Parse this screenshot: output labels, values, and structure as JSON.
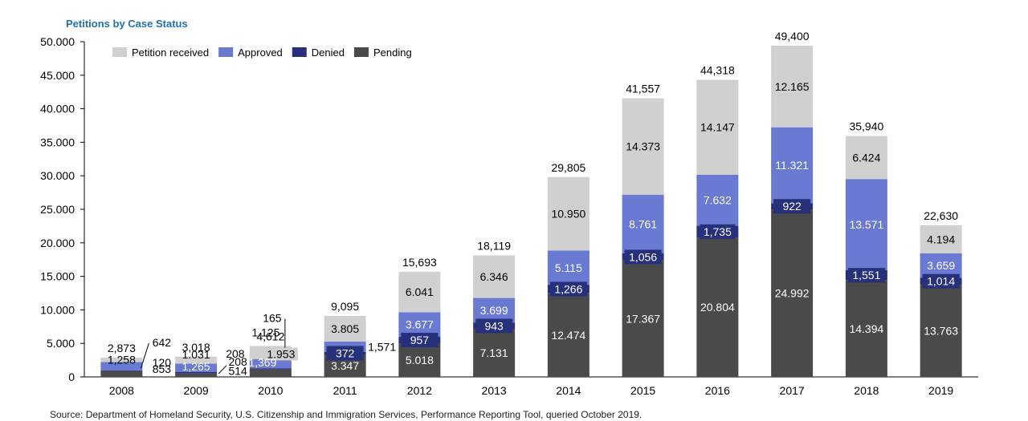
{
  "chart_data": {
    "type": "bar",
    "stacked": true,
    "title": "Petitions by Case Status",
    "source": "Source: Department of Homeland Security, U.S. Citizenship and Immigration Services, Performance Reporting Tool, queried October 2019.",
    "categories": [
      "2008",
      "2009",
      "2010",
      "2011",
      "2012",
      "2013",
      "2014",
      "2015",
      "2016",
      "2017",
      "2018",
      "2019"
    ],
    "ylim": [
      0,
      50000
    ],
    "yticks": [
      "0",
      "5.000",
      "10.000",
      "15.000",
      "20.000",
      "25.000",
      "30.000",
      "35.000",
      "40.000",
      "45.000",
      "50.000"
    ],
    "legend_position": "top-left",
    "series": [
      {
        "name": "Pending",
        "color": "#4a4a4a",
        "values": [
          853,
          514,
          1125,
          3347,
          5018,
          7131,
          12474,
          17367,
          20804,
          24992,
          14394,
          13763
        ],
        "labels": [
          "853",
          "514",
          "1.125",
          "3.347",
          "5.018",
          "7.131",
          "12.474",
          "17.367",
          "20.804",
          "24.992",
          "14.394",
          "13.763"
        ]
      },
      {
        "name": "Denied",
        "color": "#27307a",
        "values": [
          120,
          208,
          165,
          372,
          957,
          943,
          1266,
          1056,
          1735,
          922,
          1551,
          1014
        ],
        "labels": [
          "120",
          "208",
          "165",
          "372",
          "957",
          "943",
          "1,266",
          "1,056",
          "1,735",
          "922",
          "1,551",
          "1,014"
        ]
      },
      {
        "name": "Approved",
        "color": "#6a79d1",
        "values": [
          1258,
          1265,
          1369,
          1571,
          3677,
          3699,
          5115,
          8761,
          7632,
          11321,
          13571,
          3659
        ],
        "labels": [
          "1,258",
          "1,265",
          "1,369",
          "1,571",
          "3.677",
          "3.699",
          "5.115",
          "8.761",
          "7.632",
          "11.321",
          "13.571",
          "3.659"
        ]
      },
      {
        "name": "Petition received",
        "color": "#d0d0d0",
        "values": [
          642,
          1031,
          1953,
          3805,
          6041,
          6346,
          10950,
          14373,
          14147,
          12165,
          6424,
          4194
        ],
        "labels": [
          "642",
          "1.031",
          "1.953",
          "3.805",
          "6.041",
          "6.346",
          "10.950",
          "14.373",
          "14.147",
          "12.165",
          "6.424",
          "4.194"
        ]
      }
    ],
    "totals": [
      "2,873",
      "3,018",
      "4,612",
      "9,095",
      "15,693",
      "18,119",
      "29,805",
      "41,557",
      "44,318",
      "49,400",
      "35,940",
      "22,630"
    ]
  },
  "colors": {
    "title": "#1f6fb2",
    "axis": "#000000"
  }
}
